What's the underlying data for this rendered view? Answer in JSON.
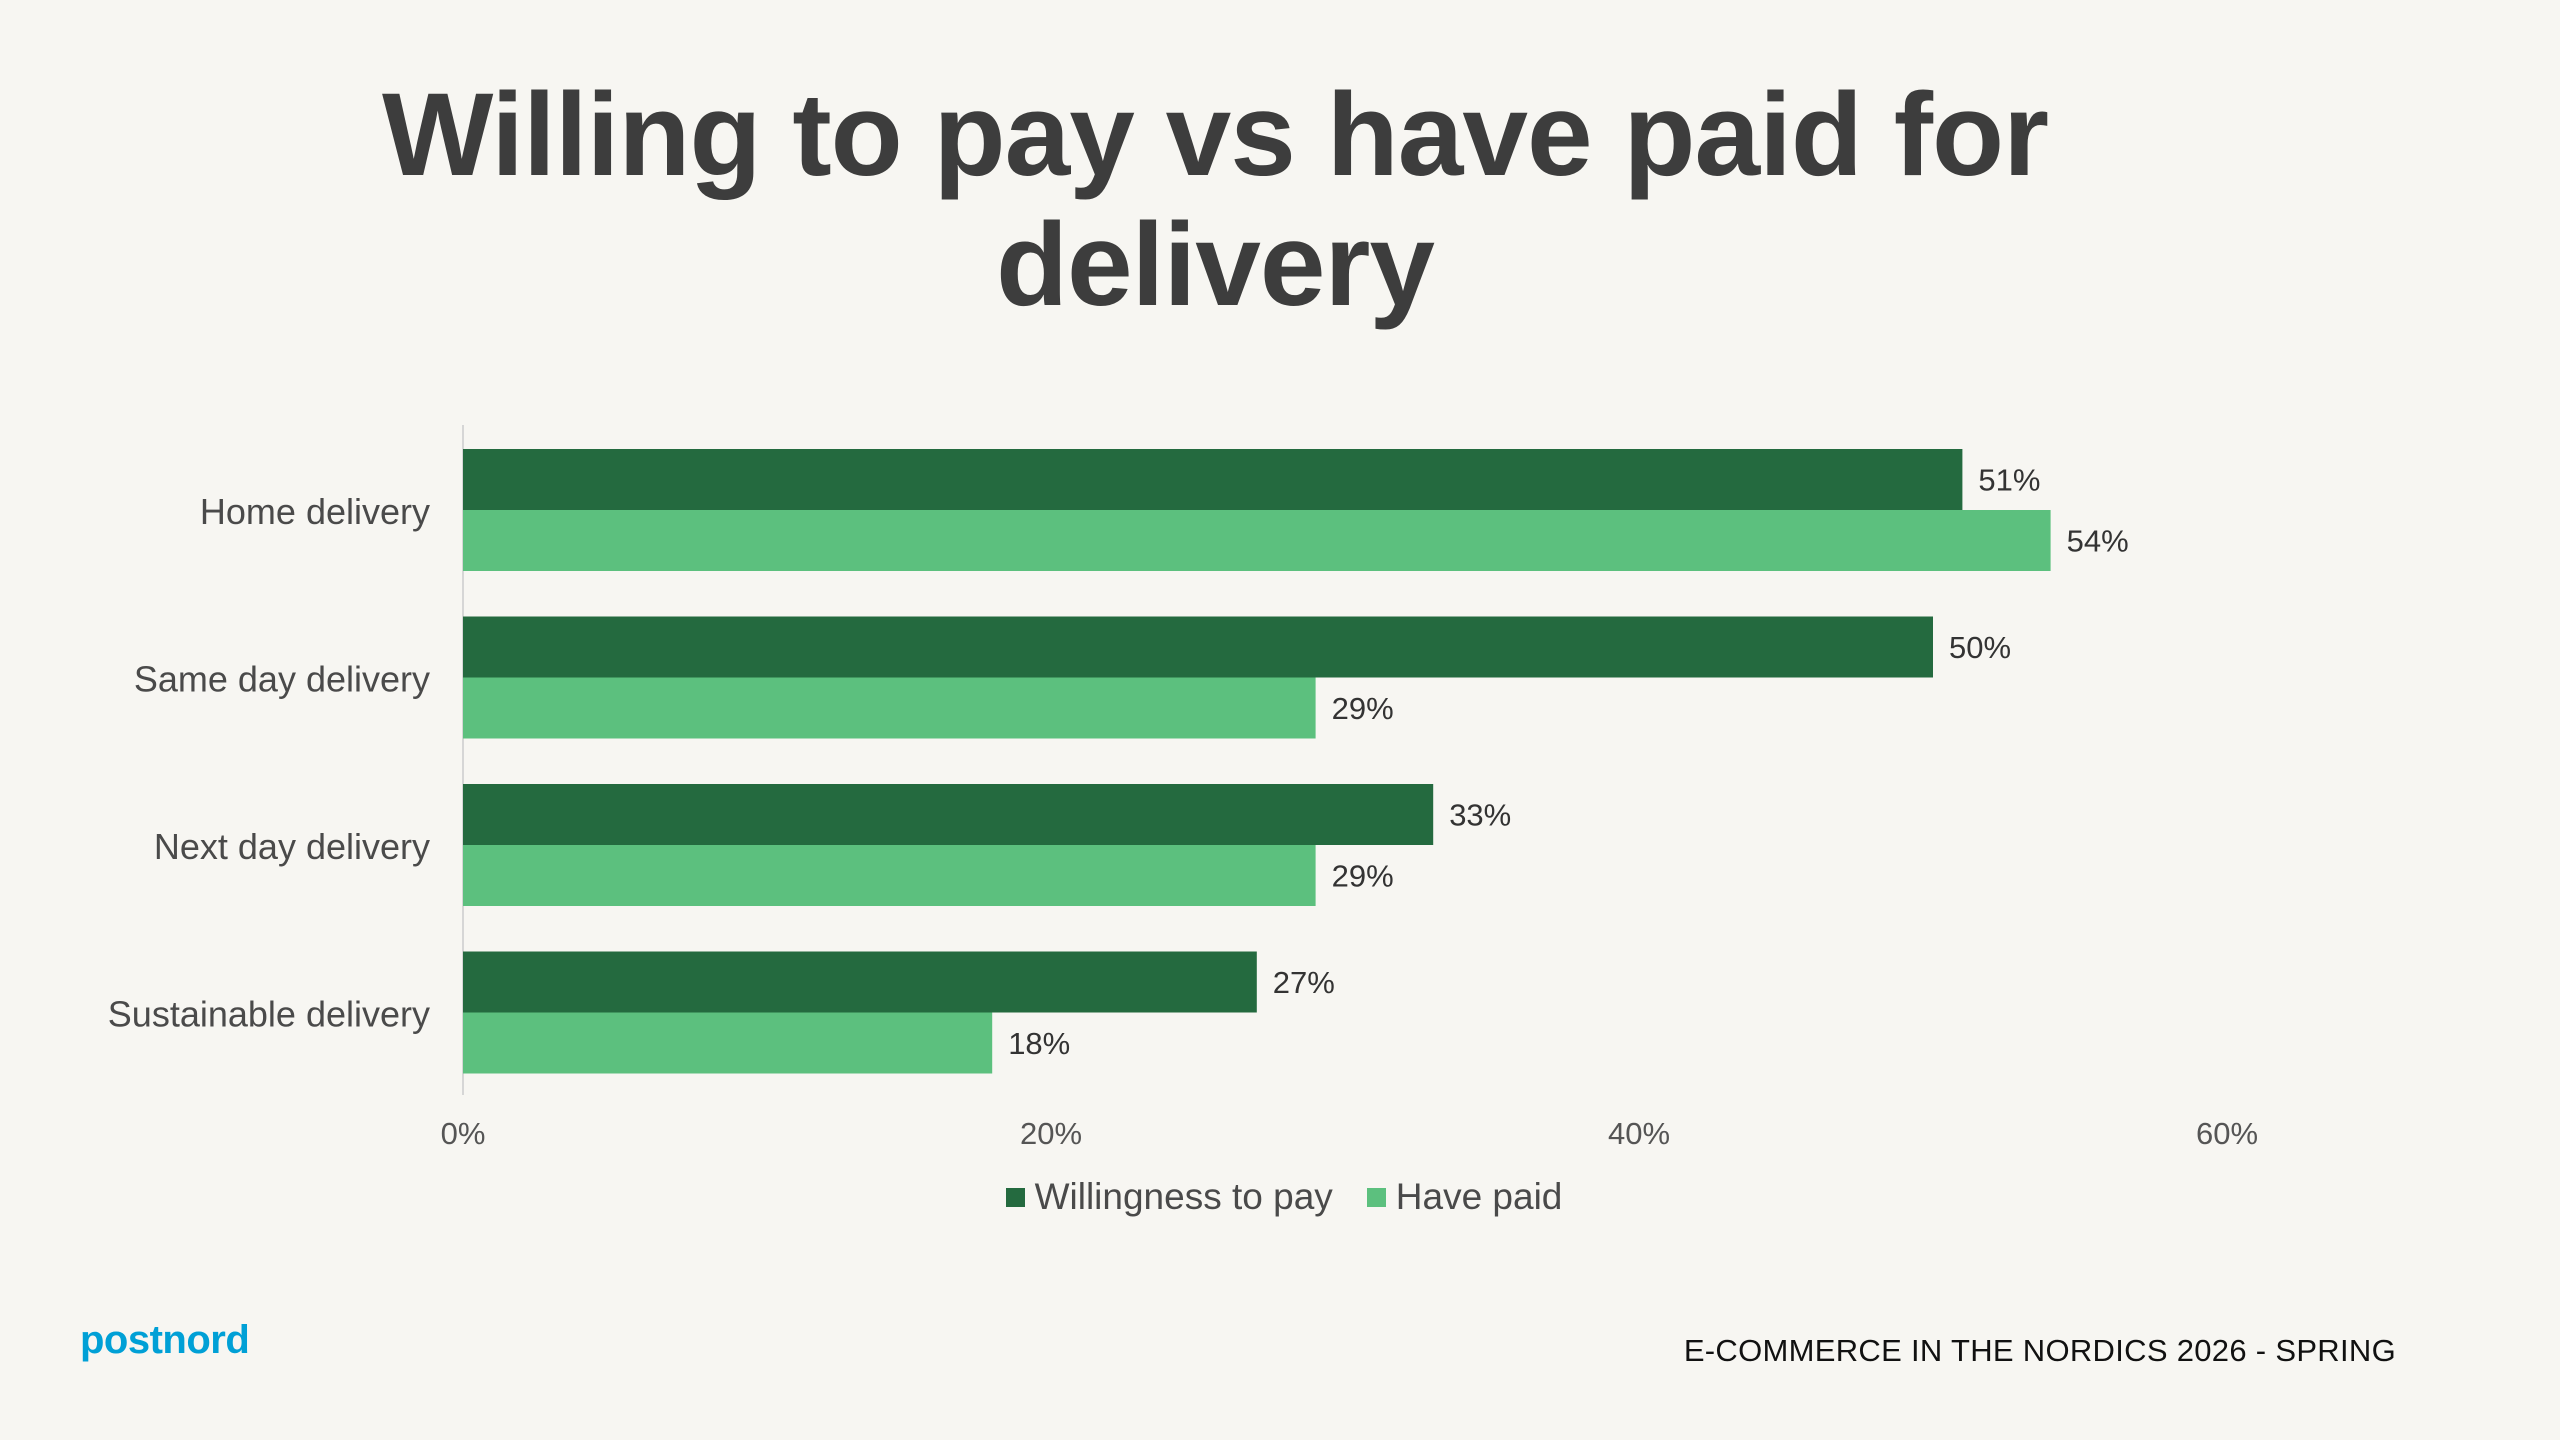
{
  "title": "Willing to pay vs have paid for delivery",
  "footer": {
    "brand": "postnord",
    "report": "E-COMMERCE IN THE NORDICS 2026 - SPRING"
  },
  "colors": {
    "background": "#f7f6f2",
    "willingness": "#246a3f",
    "have_paid": "#5cc07e",
    "text": "#3d3d3d",
    "brand": "#00a0d6"
  },
  "chart_data": {
    "type": "bar",
    "orientation": "horizontal",
    "categories": [
      "Home delivery",
      "Same day delivery",
      "Next day delivery",
      "Sustainable delivery"
    ],
    "series": [
      {
        "name": "Willingness to pay",
        "values": [
          51,
          50,
          33,
          27
        ],
        "labels": [
          "51%",
          "50%",
          "33%",
          "27%"
        ]
      },
      {
        "name": "Have paid",
        "values": [
          54,
          29,
          29,
          18
        ],
        "labels": [
          "54%",
          "29%",
          "29%",
          "18%"
        ]
      }
    ],
    "xlim": [
      0,
      60
    ],
    "xticks": [
      0,
      20,
      40,
      60
    ],
    "xtick_labels": [
      "0%",
      "20%",
      "40%",
      "60%"
    ],
    "grid": false,
    "legend_position": "bottom"
  }
}
